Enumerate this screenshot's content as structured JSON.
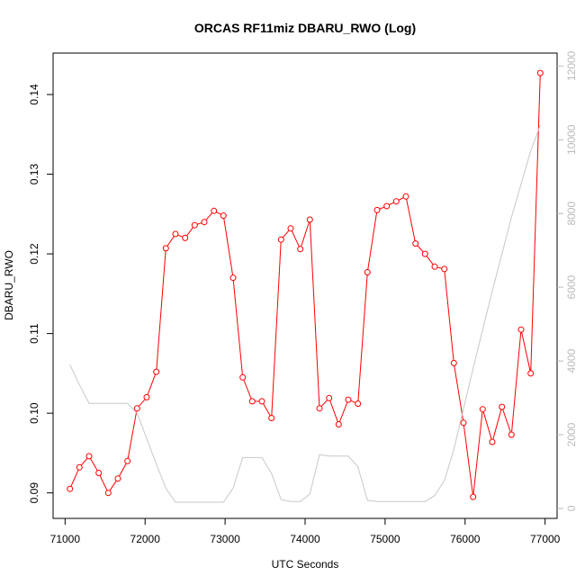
{
  "chart_data": {
    "type": "line",
    "title": "ORCAS RF11miz DBARU_RWO (Log)",
    "xlabel": "UTC Seconds",
    "ylabel": "DBARU_RWO",
    "xlim": [
      70850,
      77150
    ],
    "ylim": [
      0.0868,
      0.1452
    ],
    "y2lim": [
      -270,
      12350
    ],
    "x_ticks": [
      71000,
      72000,
      73000,
      74000,
      75000,
      76000,
      77000
    ],
    "y_ticks": [
      0.09,
      0.1,
      0.11,
      0.12,
      0.13,
      0.14
    ],
    "y_tick_labels": [
      "0.09",
      "0.10",
      "0.11",
      "0.12",
      "0.13",
      "0.14"
    ],
    "y2_ticks": [
      0,
      2000,
      4000,
      6000,
      8000,
      10000,
      12000
    ],
    "grid": false,
    "legend": "none",
    "series": [
      {
        "axis": "left",
        "color": "#ff0000",
        "marker": "open-circle",
        "x": [
          71060,
          71180,
          71300,
          71420,
          71540,
          71660,
          71780,
          71900,
          72020,
          72140,
          72260,
          72380,
          72500,
          72620,
          72740,
          72860,
          72980,
          73100,
          73220,
          73340,
          73460,
          73580,
          73700,
          73820,
          73940,
          74060,
          74180,
          74300,
          74420,
          74540,
          74660,
          74780,
          74900,
          75020,
          75140,
          75260,
          75380,
          75500,
          75620,
          75740,
          75860,
          75980,
          76100,
          76220,
          76340,
          76460,
          76580,
          76700,
          76820,
          76940
        ],
        "y": [
          0.0905,
          0.0932,
          0.0946,
          0.0925,
          0.09,
          0.0918,
          0.094,
          0.1006,
          0.102,
          0.1052,
          0.1207,
          0.1225,
          0.122,
          0.1236,
          0.124,
          0.1254,
          0.1248,
          0.117,
          0.1045,
          0.1015,
          0.1015,
          0.0994,
          0.1218,
          0.1232,
          0.1206,
          0.1243,
          0.1006,
          0.1019,
          0.0986,
          0.1017,
          0.1012,
          0.1177,
          0.1255,
          0.126,
          0.1266,
          0.1272,
          0.1213,
          0.12,
          0.1184,
          0.1181,
          0.1063,
          0.0988,
          0.0895,
          0.1005,
          0.0964,
          0.1008,
          0.0973,
          0.1105,
          0.105,
          0.1427
        ]
      },
      {
        "axis": "right",
        "color": "#c8c8c8",
        "marker": "none",
        "x": [
          71060,
          71180,
          71300,
          71420,
          71540,
          71660,
          71780,
          71900,
          72020,
          72140,
          72260,
          72380,
          72500,
          72620,
          72740,
          72860,
          72980,
          73100,
          73220,
          73340,
          73460,
          73580,
          73700,
          73820,
          73940,
          74060,
          74180,
          74300,
          74420,
          74540,
          74660,
          74780,
          74900,
          75020,
          75140,
          75260,
          75380,
          75500,
          75620,
          75740,
          75860,
          75980,
          76100,
          76220,
          76340,
          76460,
          76580,
          76700,
          76820,
          76940
        ],
        "y": [
          3900,
          3350,
          2850,
          2850,
          2850,
          2850,
          2850,
          2580,
          1900,
          1200,
          550,
          170,
          170,
          170,
          170,
          170,
          170,
          550,
          1380,
          1380,
          1380,
          950,
          240,
          190,
          190,
          390,
          1460,
          1420,
          1420,
          1420,
          1130,
          220,
          190,
          190,
          190,
          190,
          190,
          190,
          350,
          750,
          1600,
          2700,
          3800,
          4850,
          5900,
          6900,
          7900,
          8800,
          9700,
          10400
        ]
      }
    ]
  }
}
